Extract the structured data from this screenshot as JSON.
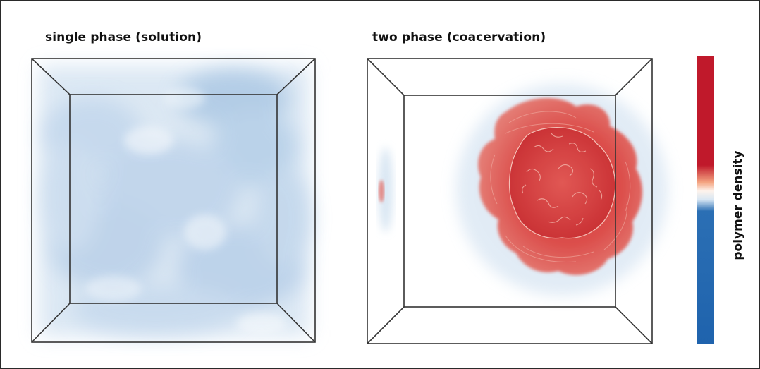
{
  "panels": [
    {
      "title": "single phase (solution)"
    },
    {
      "title": "two phase (coacervation)"
    }
  ],
  "colorbar": {
    "label": "polymer density",
    "colors": {
      "high": "#c0192b",
      "mid": "#fdf3ec",
      "low": "#1f63ad"
    }
  }
}
